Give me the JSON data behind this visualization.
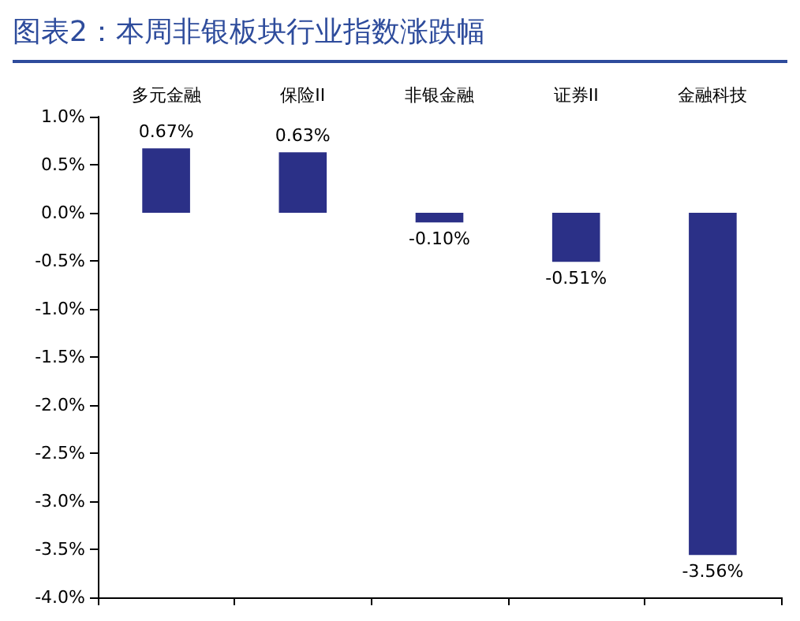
{
  "chart_data": {
    "type": "bar",
    "title": "图表2：本周非银板块行业指数涨跌幅",
    "categories": [
      "多元金融",
      "保险II",
      "非银金融",
      "证券II",
      "金融科技"
    ],
    "values": [
      0.67,
      0.63,
      -0.1,
      -0.51,
      -3.56
    ],
    "value_labels": [
      "0.67%",
      "0.63%",
      "-0.10%",
      "-0.51%",
      "-3.56%"
    ],
    "color": "#2b3087",
    "ylim": [
      -4,
      1
    ],
    "yticks": [
      {
        "value": 1,
        "label": "1.0%"
      },
      {
        "value": 0.5,
        "label": "0.5%"
      },
      {
        "value": 0,
        "label": "0.0%"
      },
      {
        "value": -0.5,
        "label": "-0.5%"
      },
      {
        "value": -1,
        "label": "-1.0%"
      },
      {
        "value": -1.5,
        "label": "-1.5%"
      },
      {
        "value": -2,
        "label": "-2.0%"
      },
      {
        "value": -2.5,
        "label": "-2.5%"
      },
      {
        "value": -3,
        "label": "-3.0%"
      },
      {
        "value": -3.5,
        "label": "-3.5%"
      },
      {
        "value": -4,
        "label": "-4.0%"
      }
    ],
    "grid": false
  }
}
